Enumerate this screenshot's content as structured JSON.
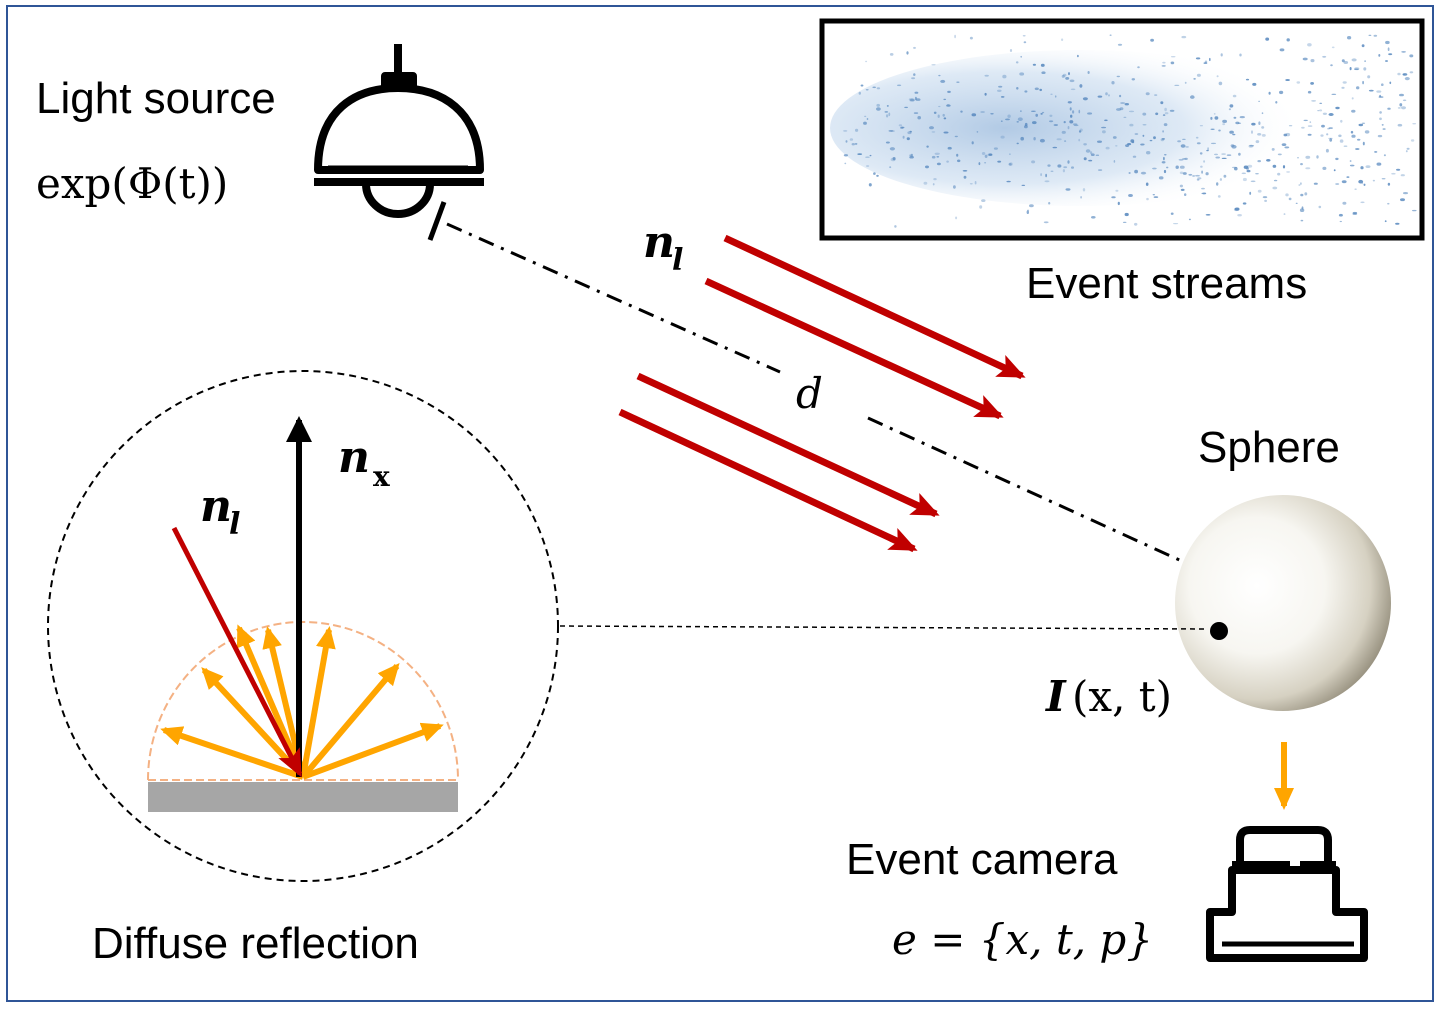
{
  "labels": {
    "light_source": "Light source",
    "light_formula": "exp(Φ(t))",
    "event_streams": "Event streams",
    "sphere": "Sphere",
    "intensity_I": "I",
    "intensity_args": "(x, t)",
    "event_camera": "Event camera",
    "event_formula": "e = {x, t, p}",
    "diffuse_reflection": "Diffuse reflection",
    "distance": "d",
    "n_base": "n",
    "n_l_sub": "l",
    "n_x_sub": "x"
  },
  "colors": {
    "frame": "#2f5597",
    "light_ray": "#c00000",
    "reflected_ray": "#ffa500",
    "normal": "#000000",
    "surface": "#a6a6a6",
    "hemisphere": "#f4b183",
    "event_dots": "#5a8abf"
  },
  "icons": [
    "lamp-icon",
    "camera-icon",
    "sphere-icon"
  ]
}
